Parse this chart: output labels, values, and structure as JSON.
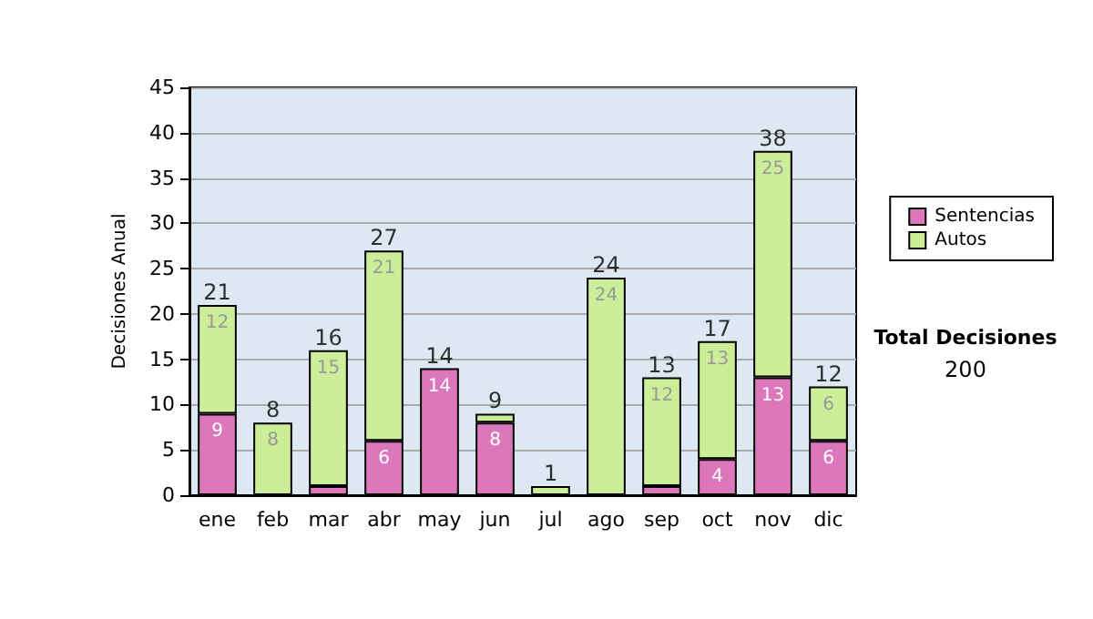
{
  "chart_data": {
    "type": "bar",
    "stacked": true,
    "ylabel": "Decisiones Anual",
    "categories": [
      "ene",
      "feb",
      "mar",
      "abr",
      "may",
      "jun",
      "jul",
      "ago",
      "sep",
      "oct",
      "nov",
      "dic"
    ],
    "series": [
      {
        "name": "Sentencias",
        "color": "#dd77bb",
        "values": [
          9,
          0,
          1,
          6,
          14,
          8,
          0,
          0,
          1,
          4,
          13,
          6
        ],
        "value_labels": [
          "9",
          null,
          null,
          "6",
          "14",
          "8",
          null,
          null,
          null,
          "4",
          "13",
          "6"
        ]
      },
      {
        "name": "Autos",
        "color": "#ccee99",
        "values": [
          12,
          8,
          15,
          21,
          0,
          1,
          1,
          24,
          12,
          13,
          25,
          6
        ],
        "value_labels": [
          "12",
          "8",
          "15",
          "21",
          null,
          null,
          null,
          "24",
          "12",
          "13",
          "25",
          "6"
        ]
      }
    ],
    "totals": [
      "21",
      "8",
      "16",
      "27",
      "14",
      "9",
      "1",
      "24",
      "13",
      "17",
      "38",
      "12"
    ],
    "ylim": [
      0,
      45
    ],
    "yticks": [
      0,
      5,
      10,
      15,
      20,
      25,
      30,
      35,
      40,
      45
    ],
    "grid": "y",
    "legend": "right",
    "annotations": [
      "Total Decisiones",
      "200"
    ]
  }
}
